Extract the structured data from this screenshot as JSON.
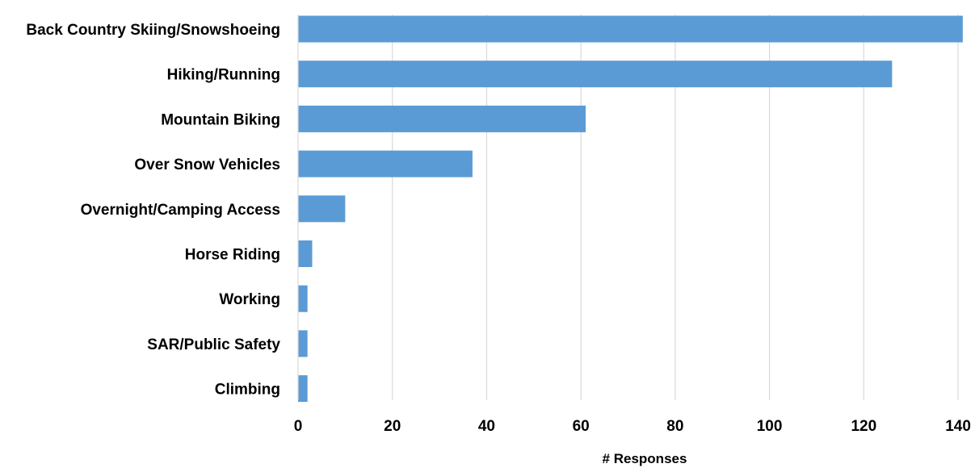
{
  "chart_data": {
    "type": "bar",
    "orientation": "horizontal",
    "categories": [
      "Back Country Skiing/Snowshoeing",
      "Hiking/Running",
      "Mountain Biking",
      "Over Snow Vehicles",
      "Overnight/Camping Access",
      "Horse Riding",
      "Working",
      "SAR/Public Safety",
      "Climbing"
    ],
    "values": [
      141,
      126,
      61,
      37,
      10,
      3,
      2,
      2,
      2
    ],
    "xlabel": "# Responses",
    "ylabel": "",
    "xlim": [
      0,
      140
    ],
    "xticks": [
      0,
      20,
      40,
      60,
      80,
      100,
      120,
      140
    ],
    "grid": "vertical",
    "legend": "none",
    "bar_color": "#5b9bd5",
    "grid_color": "#d9d9d9"
  }
}
